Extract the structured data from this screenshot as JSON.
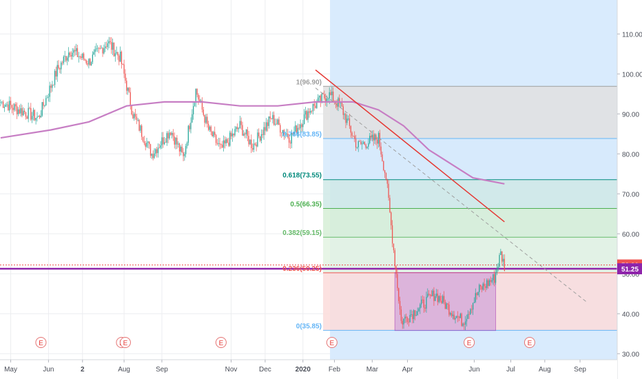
{
  "chart_data": {
    "type": "candlestick",
    "symbol_series_color": "#26a69a",
    "down_color": "#ef5350",
    "ylim": [
      28.5,
      118.5
    ],
    "y_ticks": [
      "110.00",
      "100.00",
      "90.00",
      "80.00",
      "70.00",
      "60.00",
      "50.00",
      "40.00",
      "30.00"
    ],
    "y_tick_values": [
      110,
      100,
      90,
      80,
      70,
      60,
      50,
      40,
      30
    ],
    "x_ticks": [
      "May",
      "Jun",
      "2",
      "Aug",
      "Sep",
      "Nov",
      "Dec",
      "2020",
      "Feb",
      "Mar",
      "Apr",
      "Jun",
      "Jul",
      "Aug",
      "Sep"
    ],
    "x_tick_index": [
      8,
      38,
      65,
      98,
      128,
      183,
      210,
      240,
      265,
      295,
      323,
      376,
      405,
      432,
      460
    ],
    "bar_count": 490,
    "price_path": [
      [
        0,
        93
      ],
      [
        15,
        91
      ],
      [
        30,
        89
      ],
      [
        45,
        101
      ],
      [
        55,
        106
      ],
      [
        70,
        103
      ],
      [
        85,
        108
      ],
      [
        95,
        104
      ],
      [
        105,
        90
      ],
      [
        120,
        80
      ],
      [
        135,
        86
      ],
      [
        145,
        79
      ],
      [
        155,
        96
      ],
      [
        165,
        86
      ],
      [
        175,
        81
      ],
      [
        190,
        87
      ],
      [
        200,
        82
      ],
      [
        215,
        89
      ],
      [
        230,
        84
      ],
      [
        245,
        91
      ],
      [
        260,
        95
      ],
      [
        270,
        92
      ],
      [
        283,
        82
      ],
      [
        300,
        84
      ],
      [
        306,
        74
      ],
      [
        313,
        53
      ],
      [
        318,
        38
      ],
      [
        330,
        41
      ],
      [
        345,
        45
      ],
      [
        360,
        40
      ],
      [
        367,
        38
      ],
      [
        380,
        46
      ],
      [
        392,
        49
      ],
      [
        397,
        55
      ],
      [
        400,
        52
      ]
    ],
    "ma_path": [
      [
        0,
        84
      ],
      [
        40,
        86
      ],
      [
        70,
        88
      ],
      [
        100,
        92
      ],
      [
        130,
        93
      ],
      [
        160,
        93
      ],
      [
        190,
        92
      ],
      [
        220,
        92
      ],
      [
        250,
        93
      ],
      [
        280,
        93
      ],
      [
        300,
        91
      ],
      [
        320,
        87
      ],
      [
        340,
        81
      ],
      [
        360,
        77
      ],
      [
        375,
        74
      ],
      [
        400,
        72.5
      ]
    ],
    "ma_color": "#c77ec4",
    "fib_levels": [
      {
        "label": "1(96.90)",
        "value": 96.9,
        "color": "#9e9e9e",
        "fill": "#e0e0e0"
      },
      {
        "label": "0.786(83.85)",
        "value": 83.85,
        "color": "#64b5f6",
        "fill": "#d6eafc"
      },
      {
        "label": "0.618(73.55)",
        "value": 73.55,
        "color": "#00897b",
        "fill": "#cfe9e6"
      },
      {
        "label": "0.5(66.35)",
        "value": 66.35,
        "color": "#4caf50",
        "fill": "#d6eed6"
      },
      {
        "label": "0.382(59.15)",
        "value": 59.15,
        "color": "#66bb6a",
        "fill": "#e3f3e2"
      },
      {
        "label": "0.236(50.25)",
        "value": 50.25,
        "color": "#ef5350",
        "fill": "#fcdcdb"
      },
      {
        "label": "0(35.85)",
        "value": 35.85,
        "color": "#64b5f6",
        "fill": ""
      }
    ],
    "horizontal_levels": [
      {
        "value": 52.2,
        "color": "#ef5350",
        "label": "52.20"
      },
      {
        "value": 51.25,
        "color": "#8e24aa",
        "label": "51.25"
      }
    ],
    "trendline": {
      "from": [
        250,
        101
      ],
      "to": [
        400,
        63
      ],
      "color": "#e53935"
    },
    "dashed_line": {
      "from": [
        250,
        96.5
      ],
      "to": [
        465,
        43
      ],
      "color": "#9e9e9e"
    },
    "box": {
      "from": [
        313,
        50.3
      ],
      "to": [
        393,
        35.8
      ],
      "color": "#c792d8"
    },
    "earnings_markers": {
      "label": "E",
      "positions": [
        32,
        96,
        99,
        175,
        263,
        372,
        420
      ]
    },
    "blue_region_start": 262
  }
}
